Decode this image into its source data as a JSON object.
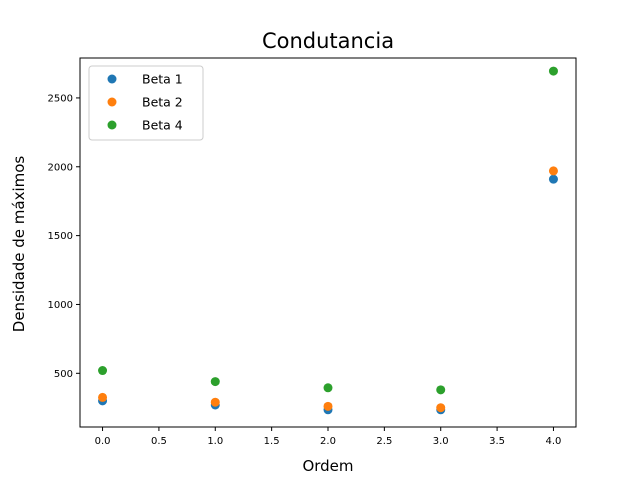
{
  "chart_data": {
    "type": "scatter",
    "title": "Condutancia",
    "xlabel": "Ordem",
    "ylabel": "Densidade de máximos",
    "xlim": [
      -0.2,
      4.2
    ],
    "ylim": [
      110,
      2790
    ],
    "xticks": [
      0.0,
      0.5,
      1.0,
      1.5,
      2.0,
      2.5,
      3.0,
      3.5,
      4.0
    ],
    "xtick_labels": [
      "0.0",
      "0.5",
      "1.0",
      "1.5",
      "2.0",
      "2.5",
      "3.0",
      "3.5",
      "4.0"
    ],
    "yticks": [
      500,
      1000,
      1500,
      2000,
      2500
    ],
    "ytick_labels": [
      "500",
      "1000",
      "1500",
      "2000",
      "2500"
    ],
    "grid": false,
    "legend_position": "top-left",
    "series": [
      {
        "name": "Beta 1",
        "color": "#1f77b4",
        "x": [
          0,
          1,
          2,
          3,
          4
        ],
        "y": [
          300,
          270,
          235,
          235,
          1910
        ]
      },
      {
        "name": "Beta 2",
        "color": "#ff7f0e",
        "x": [
          0,
          1,
          2,
          3,
          4
        ],
        "y": [
          325,
          290,
          260,
          250,
          1970
        ]
      },
      {
        "name": "Beta 4",
        "color": "#2ca02c",
        "x": [
          0,
          1,
          2,
          3,
          4
        ],
        "y": [
          520,
          440,
          395,
          380,
          2695
        ]
      }
    ]
  }
}
